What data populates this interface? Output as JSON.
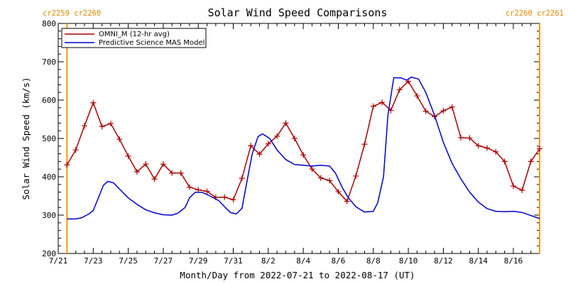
{
  "chart_data": {
    "type": "line",
    "title": "Solar Wind Speed Comparisons",
    "xlabel": "Month/Day from 2022-07-21 to 2022-08-17 (UT)",
    "ylabel": "Solar Wind Speed (km/s)",
    "xlim": [
      "2022-07-21",
      "2022-08-17 12:00"
    ],
    "ylim": [
      200,
      800
    ],
    "x_ticks": [
      {
        "date": "2022-07-21",
        "label": "7/21"
      },
      {
        "date": "2022-07-23",
        "label": "7/23"
      },
      {
        "date": "2022-07-25",
        "label": "7/25"
      },
      {
        "date": "2022-07-27",
        "label": "7/27"
      },
      {
        "date": "2022-07-29",
        "label": "7/29"
      },
      {
        "date": "2022-07-31",
        "label": "7/31"
      },
      {
        "date": "2022-08-02",
        "label": "8/2"
      },
      {
        "date": "2022-08-04",
        "label": "8/4"
      },
      {
        "date": "2022-08-06",
        "label": "8/6"
      },
      {
        "date": "2022-08-08",
        "label": "8/8"
      },
      {
        "date": "2022-08-10",
        "label": "8/10"
      },
      {
        "date": "2022-08-12",
        "label": "8/12"
      },
      {
        "date": "2022-08-14",
        "label": "8/14"
      },
      {
        "date": "2022-08-16",
        "label": "8/16"
      }
    ],
    "y_ticks": [
      200,
      300,
      400,
      500,
      600,
      700,
      800
    ],
    "grid": false,
    "legend_position": "top-left",
    "carrington_markers": [
      {
        "date": "2022-07-21 12:00",
        "labels": [
          "cr2259",
          "cr2260"
        ],
        "align": "left"
      },
      {
        "date": "2022-08-17 12:00",
        "labels": [
          "cr2260",
          "cr2261"
        ],
        "align": "right"
      }
    ],
    "series": [
      {
        "name": "OMNI_M (12-hr avg)",
        "color": "#aa0000",
        "marker": "plus",
        "points": [
          [
            "2022-07-21 12:00",
            431
          ],
          [
            "2022-07-22 00:00",
            470
          ],
          [
            "2022-07-22 12:00",
            533
          ],
          [
            "2022-07-23 00:00",
            593
          ],
          [
            "2022-07-23 12:00",
            531
          ],
          [
            "2022-07-24 00:00",
            539
          ],
          [
            "2022-07-24 12:00",
            498
          ],
          [
            "2022-07-25 00:00",
            454
          ],
          [
            "2022-07-25 12:00",
            413
          ],
          [
            "2022-07-26 00:00",
            433
          ],
          [
            "2022-07-26 12:00",
            394
          ],
          [
            "2022-07-27 00:00",
            433
          ],
          [
            "2022-07-27 12:00",
            410
          ],
          [
            "2022-07-28 00:00",
            410
          ],
          [
            "2022-07-28 12:00",
            373
          ],
          [
            "2022-07-29 00:00",
            366
          ],
          [
            "2022-07-29 12:00",
            362
          ],
          [
            "2022-07-30 00:00",
            346
          ],
          [
            "2022-07-30 12:00",
            347
          ],
          [
            "2022-07-31 00:00",
            340
          ],
          [
            "2022-07-31 12:00",
            396
          ],
          [
            "2022-08-01 00:00",
            481
          ],
          [
            "2022-08-01 12:00",
            459
          ],
          [
            "2022-08-02 00:00",
            486
          ],
          [
            "2022-08-02 12:00",
            506
          ],
          [
            "2022-08-03 00:00",
            540
          ],
          [
            "2022-08-03 12:00",
            500
          ],
          [
            "2022-08-04 00:00",
            457
          ],
          [
            "2022-08-04 12:00",
            420
          ],
          [
            "2022-08-05 00:00",
            397
          ],
          [
            "2022-08-05 12:00",
            390
          ],
          [
            "2022-08-06 00:00",
            361
          ],
          [
            "2022-08-06 12:00",
            336
          ],
          [
            "2022-08-07 00:00",
            402
          ],
          [
            "2022-08-07 12:00",
            485
          ],
          [
            "2022-08-08 00:00",
            584
          ],
          [
            "2022-08-08 12:00",
            594
          ],
          [
            "2022-08-09 00:00",
            573
          ],
          [
            "2022-08-09 12:00",
            627
          ],
          [
            "2022-08-10 00:00",
            649
          ],
          [
            "2022-08-10 12:00",
            611
          ],
          [
            "2022-08-11 00:00",
            571
          ],
          [
            "2022-08-11 12:00",
            557
          ],
          [
            "2022-08-12 00:00",
            572
          ],
          [
            "2022-08-12 12:00",
            582
          ],
          [
            "2022-08-13 00:00",
            502
          ],
          [
            "2022-08-13 12:00",
            501
          ],
          [
            "2022-08-14 00:00",
            481
          ],
          [
            "2022-08-14 12:00",
            475
          ],
          [
            "2022-08-15 00:00",
            465
          ],
          [
            "2022-08-15 12:00",
            440
          ],
          [
            "2022-08-16 00:00",
            376
          ],
          [
            "2022-08-16 12:00",
            365
          ],
          [
            "2022-08-17 00:00",
            440
          ],
          [
            "2022-08-17 12:00",
            473
          ]
        ]
      },
      {
        "name": "Predictive Science MAS Model",
        "color": "#0000cc",
        "marker": "none",
        "points": [
          [
            "2022-07-21 12:00",
            290
          ],
          [
            "2022-07-22 00:00",
            290
          ],
          [
            "2022-07-22 08:00",
            293
          ],
          [
            "2022-07-22 18:00",
            303
          ],
          [
            "2022-07-23 00:00",
            312
          ],
          [
            "2022-07-23 06:00",
            340
          ],
          [
            "2022-07-23 14:00",
            378
          ],
          [
            "2022-07-23 20:00",
            388
          ],
          [
            "2022-07-24 04:00",
            384
          ],
          [
            "2022-07-24 12:00",
            368
          ],
          [
            "2022-07-25 00:00",
            345
          ],
          [
            "2022-07-25 12:00",
            328
          ],
          [
            "2022-07-26 00:00",
            314
          ],
          [
            "2022-07-26 12:00",
            306
          ],
          [
            "2022-07-27 00:00",
            301
          ],
          [
            "2022-07-27 12:00",
            300
          ],
          [
            "2022-07-27 20:00",
            305
          ],
          [
            "2022-07-28 06:00",
            320
          ],
          [
            "2022-07-28 12:00",
            345
          ],
          [
            "2022-07-28 20:00",
            360
          ],
          [
            "2022-07-29 06:00",
            359
          ],
          [
            "2022-07-29 16:00",
            350
          ],
          [
            "2022-07-30 04:00",
            338
          ],
          [
            "2022-07-30 12:00",
            322
          ],
          [
            "2022-07-30 20:00",
            307
          ],
          [
            "2022-07-31 04:00",
            303
          ],
          [
            "2022-07-31 12:00",
            318
          ],
          [
            "2022-07-31 18:00",
            380
          ],
          [
            "2022-08-01 02:00",
            460
          ],
          [
            "2022-08-01 10:00",
            505
          ],
          [
            "2022-08-01 16:00",
            512
          ],
          [
            "2022-08-02 02:00",
            500
          ],
          [
            "2022-08-02 12:00",
            470
          ],
          [
            "2022-08-03 00:00",
            445
          ],
          [
            "2022-08-03 12:00",
            432
          ],
          [
            "2022-08-04 00:00",
            430
          ],
          [
            "2022-08-04 12:00",
            428
          ],
          [
            "2022-08-05 00:00",
            430
          ],
          [
            "2022-08-05 12:00",
            428
          ],
          [
            "2022-08-05 20:00",
            410
          ],
          [
            "2022-08-06 06:00",
            370
          ],
          [
            "2022-08-06 14:00",
            345
          ],
          [
            "2022-08-07 00:00",
            322
          ],
          [
            "2022-08-07 12:00",
            308
          ],
          [
            "2022-08-08 00:00",
            310
          ],
          [
            "2022-08-08 06:00",
            332
          ],
          [
            "2022-08-08 14:00",
            400
          ],
          [
            "2022-08-08 20:00",
            560
          ],
          [
            "2022-08-09 04:00",
            658
          ],
          [
            "2022-08-09 14:00",
            658
          ],
          [
            "2022-08-09 22:00",
            652
          ],
          [
            "2022-08-10 04:00",
            660
          ],
          [
            "2022-08-10 14:00",
            655
          ],
          [
            "2022-08-11 00:00",
            620
          ],
          [
            "2022-08-11 12:00",
            560
          ],
          [
            "2022-08-12 00:00",
            490
          ],
          [
            "2022-08-12 12:00",
            435
          ],
          [
            "2022-08-13 00:00",
            395
          ],
          [
            "2022-08-13 12:00",
            360
          ],
          [
            "2022-08-14 00:00",
            334
          ],
          [
            "2022-08-14 12:00",
            317
          ],
          [
            "2022-08-15 00:00",
            310
          ],
          [
            "2022-08-15 12:00",
            309
          ],
          [
            "2022-08-16 00:00",
            310
          ],
          [
            "2022-08-16 12:00",
            307
          ],
          [
            "2022-08-17 00:00",
            299
          ],
          [
            "2022-08-17 12:00",
            291
          ]
        ]
      }
    ]
  }
}
